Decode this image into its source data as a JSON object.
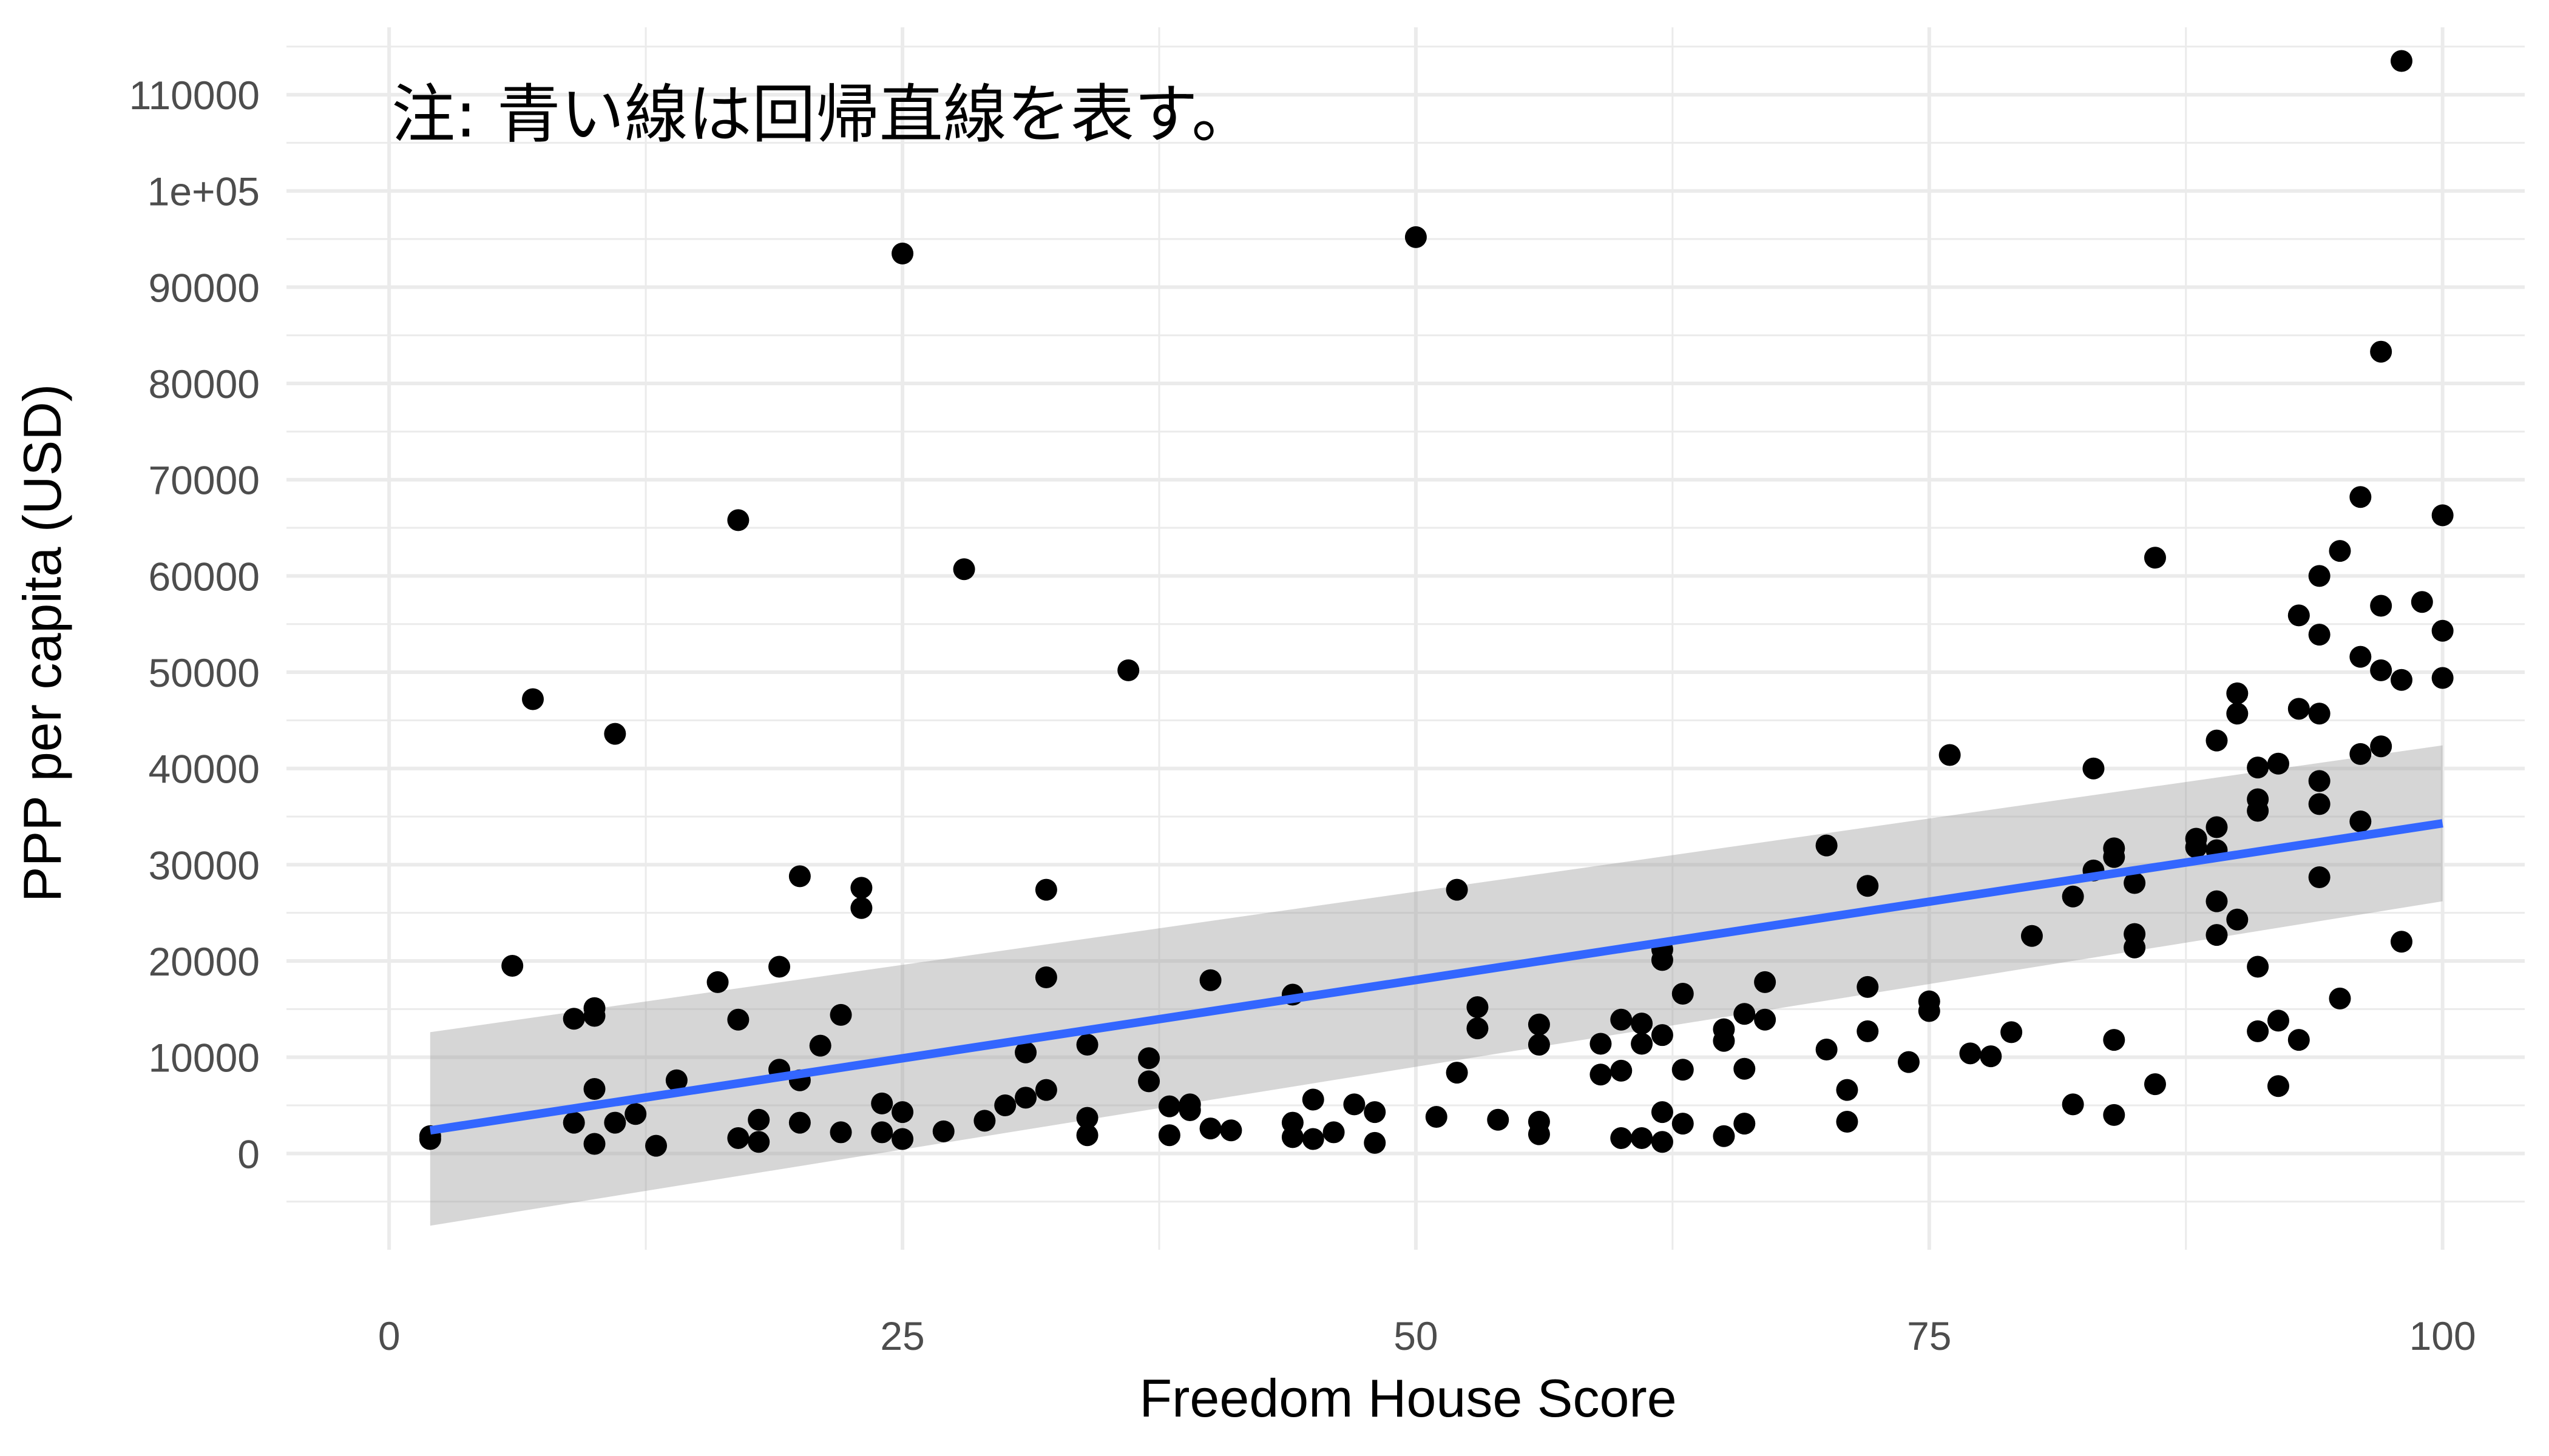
{
  "chart_data": {
    "type": "scatter",
    "title": "",
    "xlabel": "Freedom House Score",
    "ylabel": "PPP per capita (USD)",
    "annotation": "注: 青い線は回帰直線を表す。",
    "xlim": [
      -5,
      104
    ],
    "ylim": [
      -10000,
      117000
    ],
    "x_ticks": [
      0,
      25,
      50,
      75,
      100
    ],
    "x_tick_labels": [
      "0",
      "25",
      "50",
      "75",
      "100"
    ],
    "y_ticks": [
      0,
      10000,
      20000,
      30000,
      40000,
      50000,
      60000,
      70000,
      80000,
      90000,
      100000,
      110000
    ],
    "y_tick_labels": [
      "0",
      "10000",
      "20000",
      "30000",
      "40000",
      "50000",
      "60000",
      "70000",
      "80000",
      "90000",
      "1e+05",
      "110000"
    ],
    "grid": true,
    "legend": "none",
    "colors": {
      "points": "#000000",
      "regression_line": "#3366FF",
      "confidence_band": "#999999",
      "grid": "#ebebeb"
    },
    "regression": {
      "x_start": 2,
      "y_start": 2400,
      "x_end": 100,
      "y_end": 34300,
      "band_lower": [
        -7500,
        26200
      ],
      "band_upper": [
        12600,
        42400
      ]
    },
    "points": [
      [
        2,
        1500
      ],
      [
        2,
        1800
      ],
      [
        6,
        19500
      ],
      [
        7,
        47200
      ],
      [
        9,
        14000
      ],
      [
        9,
        3200
      ],
      [
        10,
        14300
      ],
      [
        10,
        15100
      ],
      [
        10,
        6700
      ],
      [
        10,
        1000
      ],
      [
        11,
        43600
      ],
      [
        11,
        3200
      ],
      [
        12,
        4100
      ],
      [
        13,
        800
      ],
      [
        14,
        7600
      ],
      [
        16,
        17800
      ],
      [
        17,
        65800
      ],
      [
        17,
        13900
      ],
      [
        17,
        1600
      ],
      [
        18,
        3500
      ],
      [
        18,
        1200
      ],
      [
        19,
        19400
      ],
      [
        19,
        8700
      ],
      [
        20,
        28800
      ],
      [
        20,
        7600
      ],
      [
        20,
        3200
      ],
      [
        21,
        11200
      ],
      [
        22,
        14400
      ],
      [
        22,
        2200
      ],
      [
        23,
        27600
      ],
      [
        23,
        25500
      ],
      [
        24,
        5200
      ],
      [
        24,
        2200
      ],
      [
        25,
        93500
      ],
      [
        25,
        4300
      ],
      [
        25,
        1500
      ],
      [
        27,
        2300
      ],
      [
        28,
        60700
      ],
      [
        29,
        3400
      ],
      [
        30,
        5000
      ],
      [
        31,
        5800
      ],
      [
        31,
        10500
      ],
      [
        32,
        27400
      ],
      [
        32,
        18300
      ],
      [
        32,
        6600
      ],
      [
        34,
        11300
      ],
      [
        34,
        3700
      ],
      [
        34,
        1900
      ],
      [
        36,
        50200
      ],
      [
        37,
        9900
      ],
      [
        37,
        7500
      ],
      [
        38,
        4900
      ],
      [
        38,
        1900
      ],
      [
        39,
        5100
      ],
      [
        39,
        4500
      ],
      [
        40,
        18000
      ],
      [
        40,
        2600
      ],
      [
        41,
        2400
      ],
      [
        44,
        16500
      ],
      [
        44,
        3200
      ],
      [
        44,
        1700
      ],
      [
        45,
        5600
      ],
      [
        45,
        1500
      ],
      [
        46,
        2200
      ],
      [
        47,
        5100
      ],
      [
        48,
        4300
      ],
      [
        48,
        1100
      ],
      [
        50,
        95200
      ],
      [
        51,
        3800
      ],
      [
        52,
        27400
      ],
      [
        52,
        8400
      ],
      [
        53,
        15200
      ],
      [
        53,
        13000
      ],
      [
        54,
        3500
      ],
      [
        56,
        13400
      ],
      [
        56,
        11300
      ],
      [
        56,
        3300
      ],
      [
        56,
        2000
      ],
      [
        59,
        11400
      ],
      [
        59,
        8200
      ],
      [
        60,
        13900
      ],
      [
        60,
        8600
      ],
      [
        60,
        1600
      ],
      [
        61,
        13500
      ],
      [
        61,
        11400
      ],
      [
        61,
        1600
      ],
      [
        62,
        21200
      ],
      [
        62,
        20100
      ],
      [
        62,
        12300
      ],
      [
        62,
        4300
      ],
      [
        62,
        1200
      ],
      [
        63,
        16600
      ],
      [
        63,
        8700
      ],
      [
        63,
        3100
      ],
      [
        65,
        12900
      ],
      [
        65,
        11700
      ],
      [
        65,
        1800
      ],
      [
        66,
        14500
      ],
      [
        66,
        8800
      ],
      [
        66,
        3100
      ],
      [
        67,
        17800
      ],
      [
        67,
        13900
      ],
      [
        70,
        32000
      ],
      [
        70,
        10800
      ],
      [
        71,
        6600
      ],
      [
        71,
        3300
      ],
      [
        72,
        27800
      ],
      [
        72,
        17300
      ],
      [
        72,
        12700
      ],
      [
        74,
        9500
      ],
      [
        75,
        15800
      ],
      [
        75,
        14800
      ],
      [
        76,
        41400
      ],
      [
        77,
        10400
      ],
      [
        78,
        10100
      ],
      [
        79,
        12600
      ],
      [
        80,
        22600
      ],
      [
        82,
        26700
      ],
      [
        82,
        5100
      ],
      [
        83,
        40000
      ],
      [
        83,
        29400
      ],
      [
        84,
        31700
      ],
      [
        84,
        30800
      ],
      [
        84,
        11800
      ],
      [
        84,
        4000
      ],
      [
        85,
        28100
      ],
      [
        85,
        22800
      ],
      [
        85,
        21400
      ],
      [
        86,
        61900
      ],
      [
        86,
        7200
      ],
      [
        88,
        32700
      ],
      [
        88,
        31800
      ],
      [
        89,
        42900
      ],
      [
        89,
        33900
      ],
      [
        89,
        31500
      ],
      [
        89,
        26200
      ],
      [
        89,
        22700
      ],
      [
        90,
        47800
      ],
      [
        90,
        45700
      ],
      [
        90,
        24300
      ],
      [
        91,
        40100
      ],
      [
        91,
        36800
      ],
      [
        91,
        35600
      ],
      [
        91,
        19400
      ],
      [
        91,
        12700
      ],
      [
        92,
        40500
      ],
      [
        92,
        13800
      ],
      [
        92,
        7000
      ],
      [
        93,
        55900
      ],
      [
        93,
        46200
      ],
      [
        93,
        11800
      ],
      [
        94,
        60000
      ],
      [
        94,
        53900
      ],
      [
        94,
        45700
      ],
      [
        94,
        38700
      ],
      [
        94,
        36300
      ],
      [
        94,
        28700
      ],
      [
        95,
        62600
      ],
      [
        95,
        16100
      ],
      [
        96,
        68200
      ],
      [
        96,
        51600
      ],
      [
        96,
        41500
      ],
      [
        96,
        34500
      ],
      [
        97,
        83300
      ],
      [
        97,
        56900
      ],
      [
        97,
        50200
      ],
      [
        97,
        42300
      ],
      [
        98,
        113500
      ],
      [
        98,
        49200
      ],
      [
        98,
        22000
      ],
      [
        99,
        57300
      ],
      [
        100,
        66300
      ],
      [
        100,
        54300
      ],
      [
        100,
        49400
      ]
    ]
  }
}
